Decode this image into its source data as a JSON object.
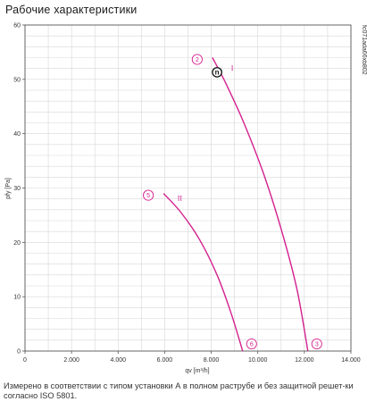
{
  "heading": "Рабочие характеристики",
  "footnote": "Измерено в соответствии с типом установки А в полном раструбе и без защитной решет-ки согласно ISO 5801.",
  "chart_code": "fc071ada66xb802",
  "colors": {
    "curve": "#d4208e",
    "grid": "#d7d7d7",
    "axis": "#555555"
  },
  "chart_data": {
    "type": "line",
    "x_axis_label": "qv [m³/h]",
    "y_axis_label": "pfy [Pa]",
    "xlim": [
      0,
      14000
    ],
    "ylim": [
      0,
      60
    ],
    "x_ticks": [
      0,
      2000,
      4000,
      6000,
      8000,
      10000,
      12000,
      14000
    ],
    "x_tick_labels": [
      "0",
      "2.000",
      "4.000",
      "6.000",
      "8.000",
      "10.000",
      "12.000",
      "14.000"
    ],
    "y_ticks": [
      0,
      10,
      20,
      30,
      40,
      50,
      60
    ],
    "y_tick_labels": [
      "0",
      "10",
      "20",
      "30",
      "40",
      "50",
      "60"
    ],
    "grid": true,
    "series": [
      {
        "name": "I",
        "points": [
          [
            8050,
            54
          ],
          [
            8600,
            49.5
          ],
          [
            9400,
            42
          ],
          [
            10300,
            32
          ],
          [
            11100,
            21
          ],
          [
            11700,
            11
          ],
          [
            12150,
            0
          ]
        ],
        "start_marker": "2",
        "end_marker": "3"
      },
      {
        "name": "II",
        "points": [
          [
            5950,
            29
          ],
          [
            6700,
            25.5
          ],
          [
            7500,
            20.5
          ],
          [
            8250,
            14
          ],
          [
            8850,
            7
          ],
          [
            9350,
            0
          ]
        ],
        "start_marker": "5",
        "end_marker": "6"
      }
    ],
    "operating_point": {
      "label": "n",
      "x": 8250,
      "y": 51.3
    }
  }
}
